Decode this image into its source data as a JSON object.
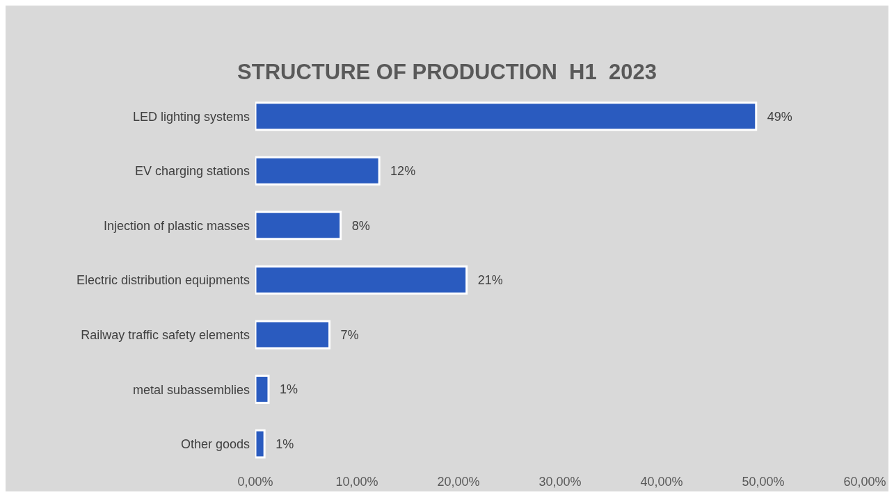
{
  "chart_data": {
    "type": "bar",
    "orientation": "horizontal",
    "title": "STRUCTURE OF PRODUCTION  H1  2023",
    "categories": [
      "LED lighting systems",
      "EV charging stations",
      "Injection of plastic masses",
      "Electric distribution equipments",
      "Railway  traffic safety elements",
      "metal subassemblies",
      "Other goods"
    ],
    "values": [
      49.3,
      12.2,
      8.4,
      20.8,
      7.3,
      1.3,
      0.9
    ],
    "value_labels": [
      "49%",
      "12%",
      "8%",
      "21%",
      "7%",
      "1%",
      "1%"
    ],
    "color": "#2a5bbf",
    "xlim": [
      0,
      60
    ],
    "xticks": [
      {
        "value": 0,
        "label": "0,00%"
      },
      {
        "value": 10,
        "label": "10,00%"
      },
      {
        "value": 20,
        "label": "20,00%"
      },
      {
        "value": 30,
        "label": "30,00%"
      },
      {
        "value": 40,
        "label": "40,00%"
      },
      {
        "value": 50,
        "label": "50,00%"
      },
      {
        "value": 60,
        "label": "60,00%"
      }
    ]
  }
}
